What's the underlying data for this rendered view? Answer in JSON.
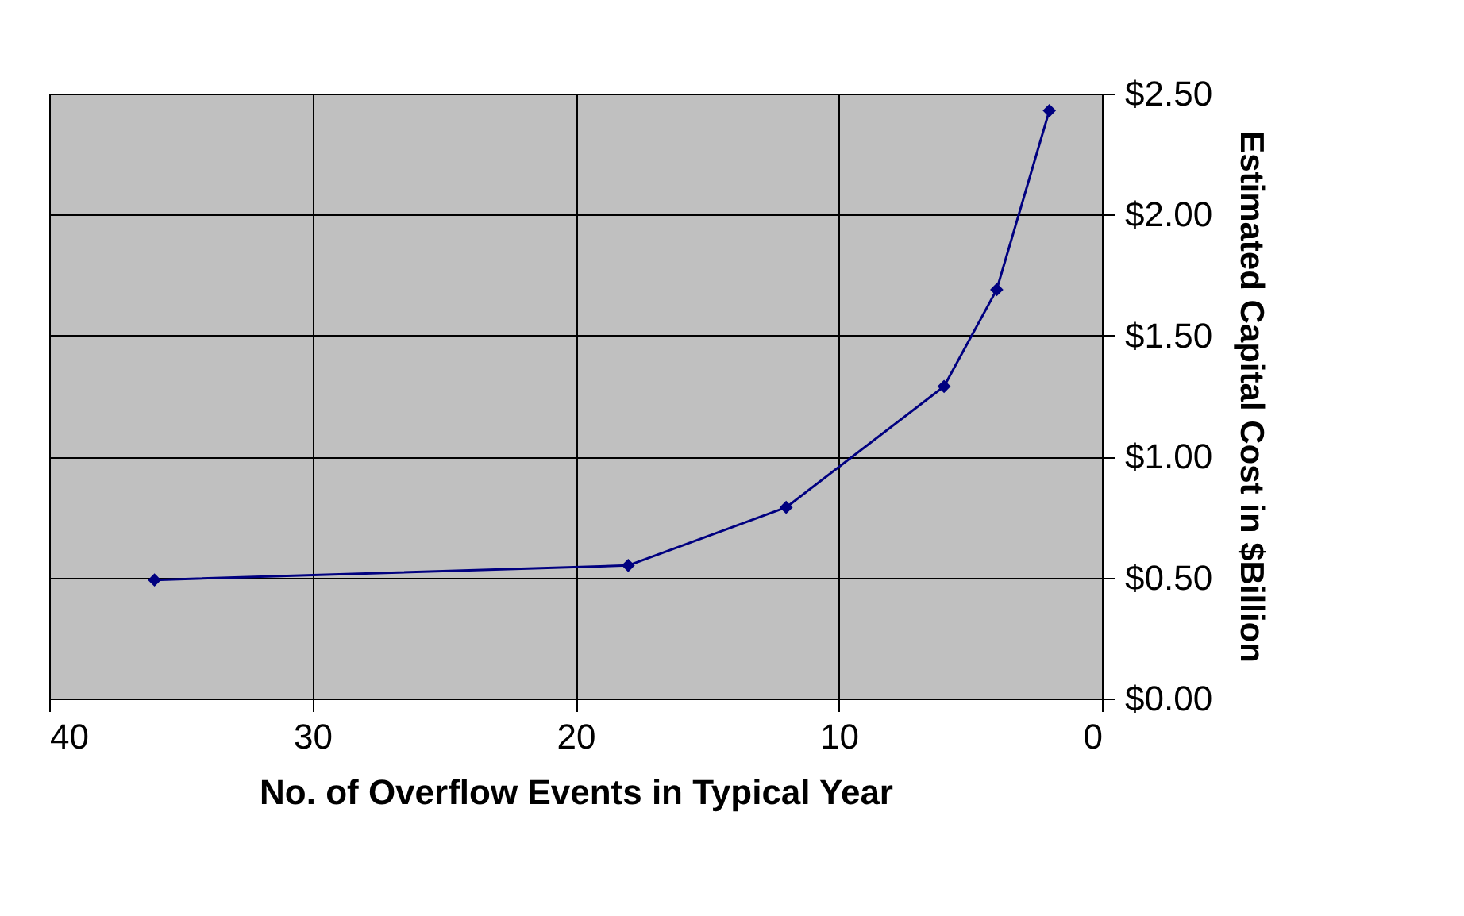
{
  "chart_data": {
    "type": "line",
    "xlabel": "No. of Overflow Events in Typical Year",
    "ylabel": "Estimated Capital Cost in $Billion",
    "series": [
      {
        "color": "#000080",
        "x": [
          36,
          18,
          12,
          6,
          4,
          2
        ],
        "values": [
          0.49,
          0.55,
          0.79,
          1.29,
          1.69,
          2.43
        ]
      }
    ],
    "xlim": [
      40,
      0
    ],
    "xticks": [
      40,
      30,
      20,
      10,
      0
    ],
    "ylim": [
      0,
      2.5
    ],
    "yticks": [
      {
        "value": 0,
        "label": "$0.00"
      },
      {
        "value": 0.5,
        "label": "$0.50"
      },
      {
        "value": 1,
        "label": "$1.00"
      },
      {
        "value": 1.5,
        "label": "$1.50"
      },
      {
        "value": 2,
        "label": "$2.00"
      },
      {
        "value": 2.5,
        "label": "$2.50"
      }
    ],
    "grid": true,
    "marker": "diamond",
    "line_style": "solid"
  }
}
